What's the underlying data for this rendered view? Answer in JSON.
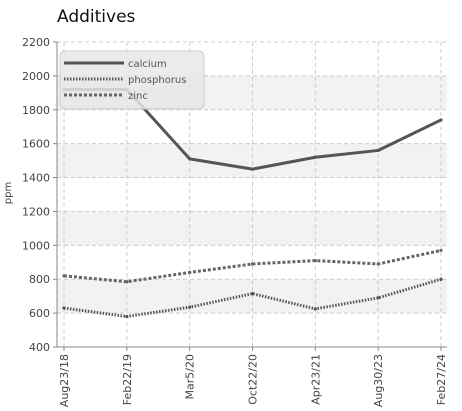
{
  "chart_data": {
    "type": "line",
    "title": "Additives",
    "xlabel": "",
    "ylabel": "ppm",
    "ylim": [
      400,
      2200
    ],
    "yticks": [
      400,
      600,
      800,
      1000,
      1200,
      1400,
      1600,
      1800,
      2000,
      2200
    ],
    "categories": [
      "Aug23/18",
      "Feb22/19",
      "Mar5/20",
      "Oct22/20",
      "Apr23/21",
      "Aug30/23",
      "Feb27/24"
    ],
    "grid": true,
    "legend_position": "top-left",
    "series": [
      {
        "name": "calcium",
        "values": [
          1920,
          1920,
          1510,
          1450,
          1520,
          1560,
          1740
        ],
        "color": "#555555",
        "style": "solid"
      },
      {
        "name": "phosphorus",
        "values": [
          630,
          580,
          635,
          715,
          625,
          690,
          800
        ],
        "color": "#555555",
        "style": "dotted"
      },
      {
        "name": "zinc",
        "values": [
          820,
          785,
          840,
          890,
          910,
          890,
          970
        ],
        "color": "#666666",
        "style": "dashed"
      }
    ]
  },
  "colors": {
    "band": "#f2f2f2",
    "grid": "#cccccc",
    "axis": "#888888"
  }
}
